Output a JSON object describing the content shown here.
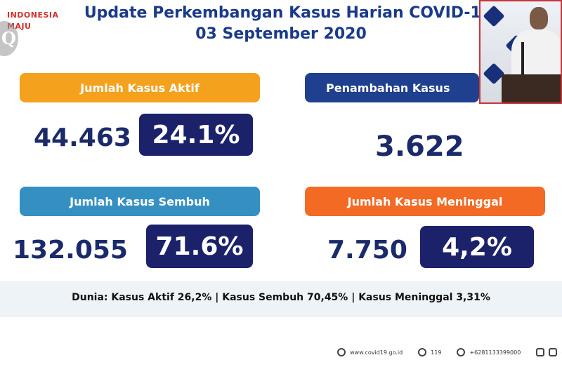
{
  "header": {
    "logo_text_line1": "INDONESIA",
    "logo_text_line2": "MAJU",
    "title": "Update Perkembangan Kasus Harian COVID-19",
    "date": "03 September 2020"
  },
  "cards": {
    "aktif": {
      "label": "Jumlah Kasus Aktif",
      "value": "44.463",
      "percent": "24.1%"
    },
    "penambahan": {
      "label": "Penambahan Kasus",
      "value": "3.622"
    },
    "sembuh": {
      "label": "Jumlah Kasus Sembuh",
      "value": "132.055",
      "percent": "71.6%"
    },
    "meninggal": {
      "label": "Jumlah Kasus Meninggal",
      "value": "7.750",
      "percent": "4,2%"
    }
  },
  "world": {
    "text": "Dunia: Kasus Aktif 26,2%  |  Kasus Sembuh 70,45%  |  Kasus Meninggal 3,31%"
  },
  "footer": {
    "website": "www.covid19.go.id",
    "hotline": "119",
    "whatsapp": "+6281133399000",
    "social": "@"
  },
  "colors": {
    "title": "#1a3a8a",
    "aktif": "#f4a11e",
    "penambahan": "#1f3f8f",
    "sembuh": "#3590c2",
    "meninggal": "#f26a24",
    "percent_box": "#1c226a"
  },
  "icons": [
    "globe-icon",
    "headset-icon",
    "whatsapp-icon",
    "instagram-icon",
    "twitter-icon"
  ]
}
